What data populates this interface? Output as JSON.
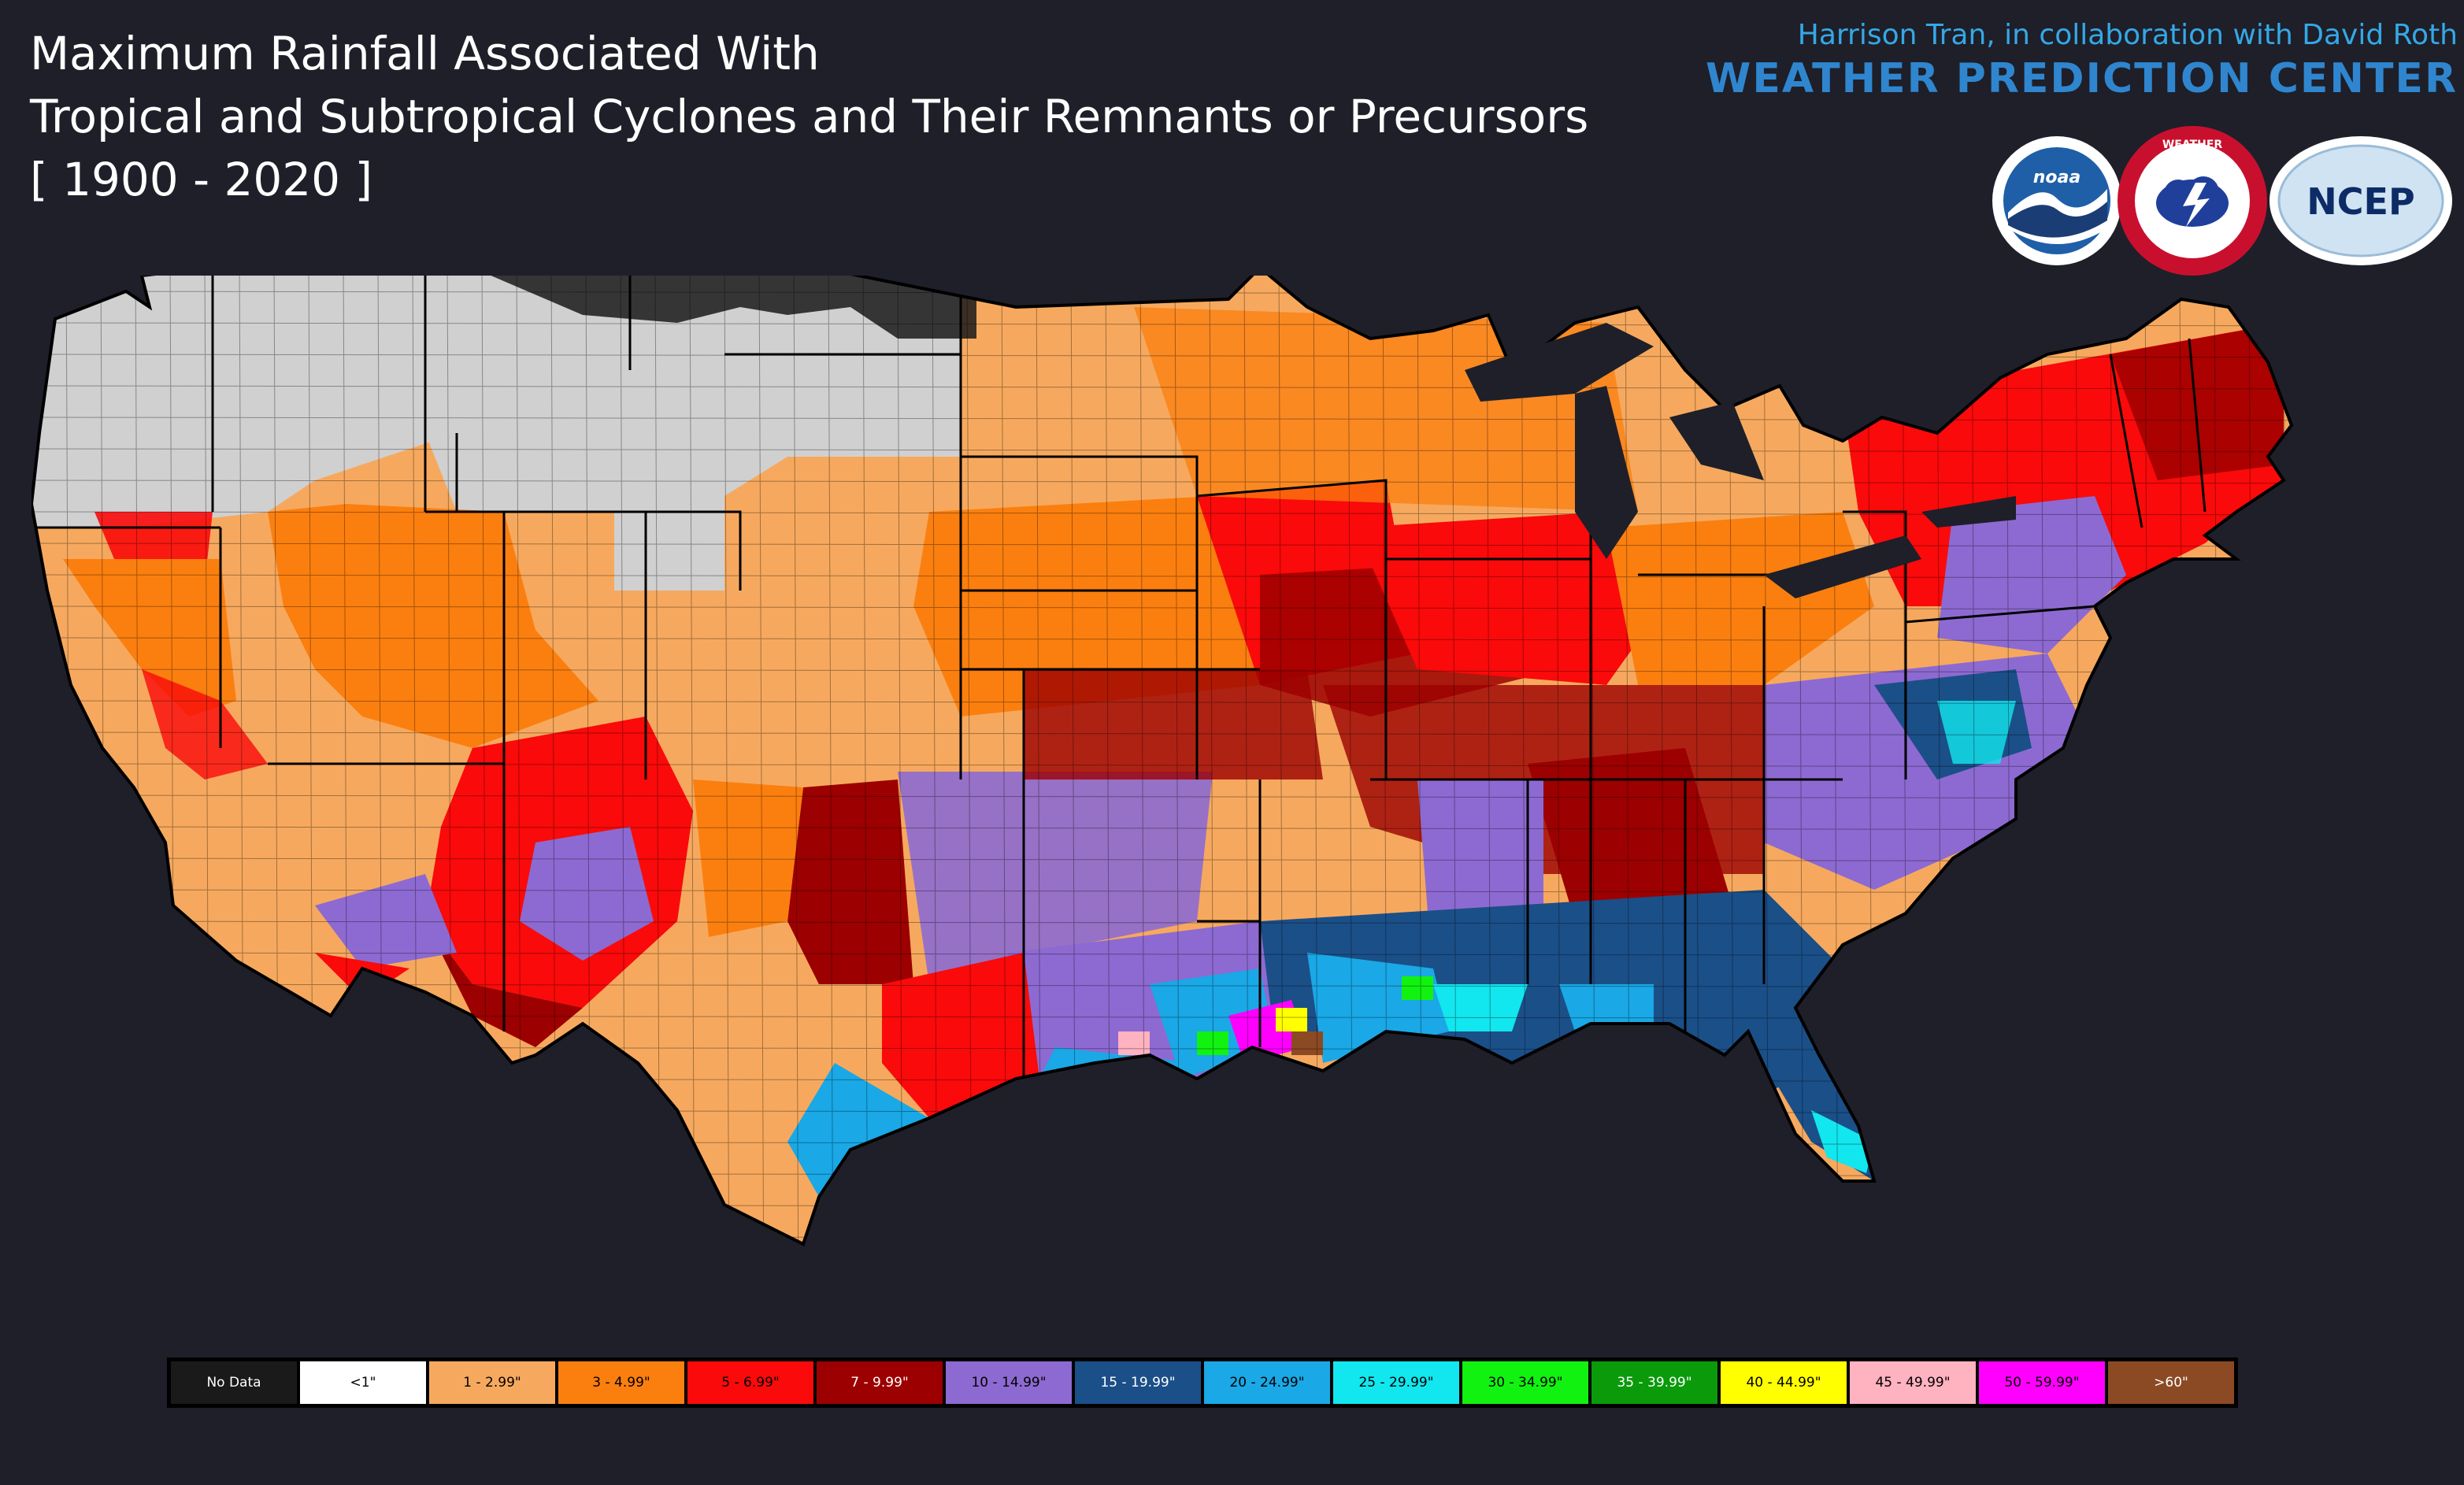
{
  "title": {
    "line1": "Maximum Rainfall Associated With",
    "line2": "Tropical and Subtropical Cyclones and Their Remnants or Precursors",
    "line3": "[ 1900 - 2020 ]"
  },
  "credit": {
    "authors": "Harrison Tran, in collaboration with David Roth",
    "organization": "WEATHER PREDICTION CENTER"
  },
  "logos": [
    {
      "name": "noaa-logo",
      "text": "noaa"
    },
    {
      "name": "nws-logo",
      "text": "NATIONAL WEATHER SERVICE"
    },
    {
      "name": "ncep-logo",
      "text": "NCEP"
    }
  ],
  "legend": [
    {
      "label": "No Data",
      "color": "#1a1a1a"
    },
    {
      "label": "<1\"",
      "color": "#ffffff"
    },
    {
      "label": "1 - 2.99\"",
      "color": "#f6a95e"
    },
    {
      "label": "3 - 4.99\"",
      "color": "#fb7f0f"
    },
    {
      "label": "5 - 6.99\"",
      "color": "#fa0a0a"
    },
    {
      "label": "7 - 9.99\"",
      "color": "#9c0000"
    },
    {
      "label": "10 - 14.99\"",
      "color": "#8d6ad1"
    },
    {
      "label": "15 - 19.99\"",
      "color": "#1b4f88"
    },
    {
      "label": "20 - 24.99\"",
      "color": "#1aa8e6"
    },
    {
      "label": "25 - 29.99\"",
      "color": "#12e6ee"
    },
    {
      "label": "30 - 34.99\"",
      "color": "#11f211"
    },
    {
      "label": "35 - 39.99\"",
      "color": "#0a9a0a"
    },
    {
      "label": "40 - 44.99\"",
      "color": "#ffff00"
    },
    {
      "label": "45 - 49.99\"",
      "color": "#ffb2c0"
    },
    {
      "label": "50 - 59.99\"",
      "color": "#ff00ff"
    },
    {
      "label": ">60\"",
      "color": "#8b4a23"
    }
  ],
  "map_colors": {
    "background": "#1e1f29",
    "outline": "#000000",
    "no_fill": "#d0d0d0"
  }
}
